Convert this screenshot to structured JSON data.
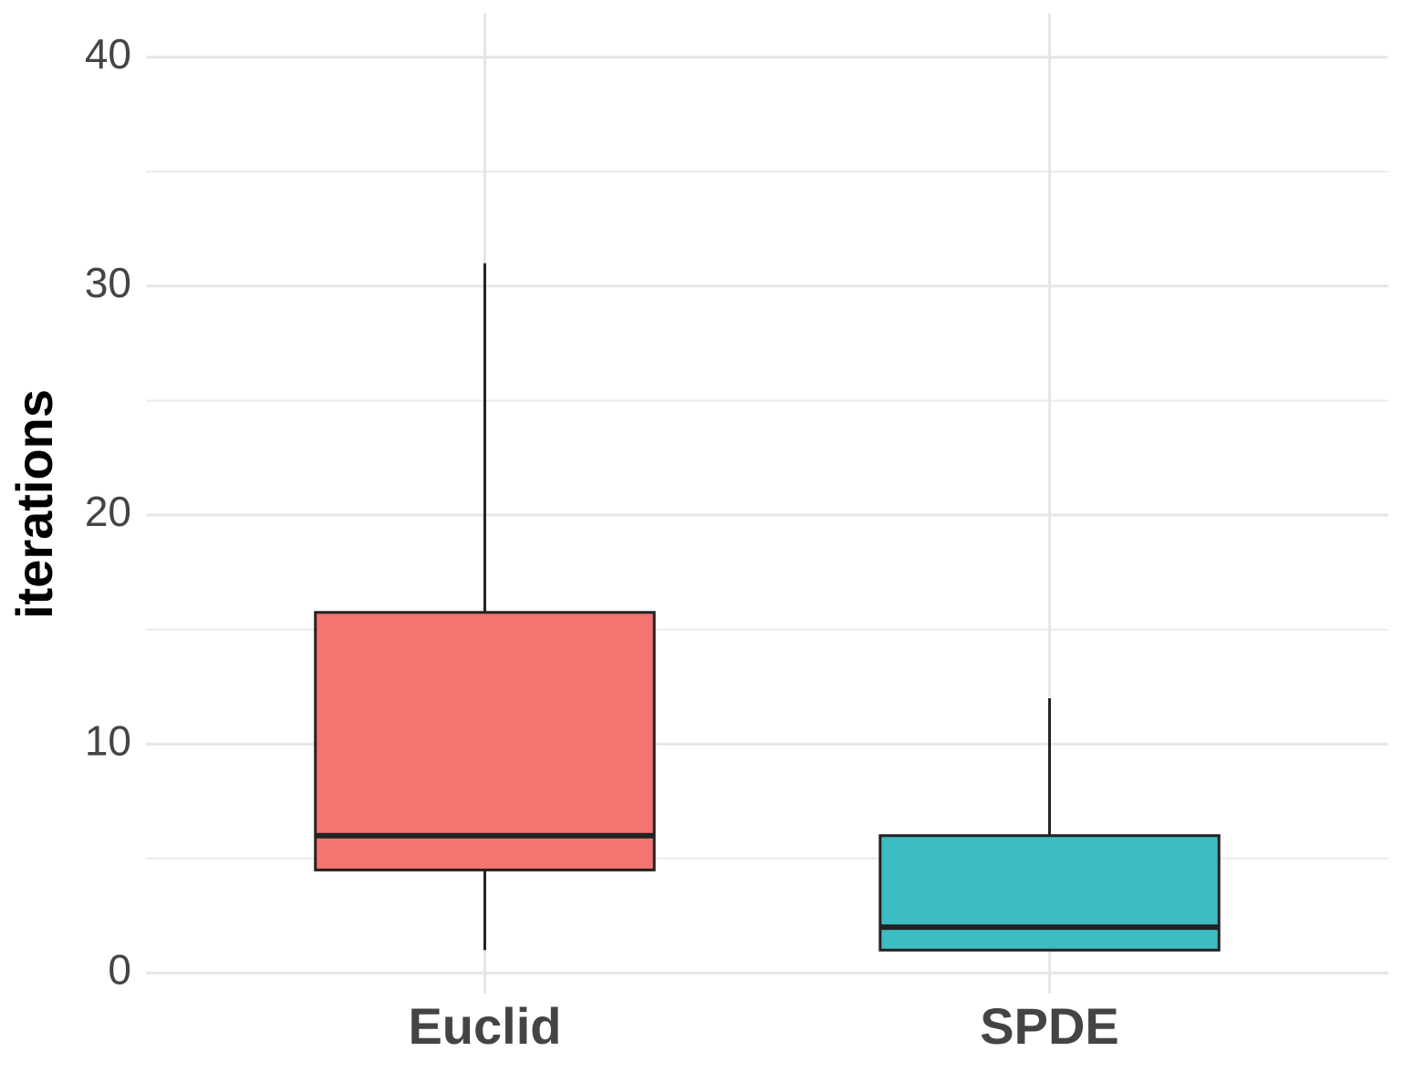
{
  "chart_data": {
    "type": "boxplot",
    "ylabel": "iterations",
    "categories": [
      "Euclid",
      "SPDE"
    ],
    "boxes": [
      {
        "min": 1,
        "q1": 4.5,
        "median": 6,
        "q3": 15.75,
        "max": 31,
        "color": "#f57472"
      },
      {
        "min": 1,
        "q1": 1,
        "median": 2,
        "q3": 6,
        "max": 12,
        "color": "#3bbdc1"
      }
    ],
    "ylim": [
      -0.9,
      41.9
    ],
    "yticks": [
      0,
      10,
      20,
      30,
      40
    ],
    "minor_yticks": [
      5,
      15,
      25,
      35
    ],
    "grid": true
  }
}
